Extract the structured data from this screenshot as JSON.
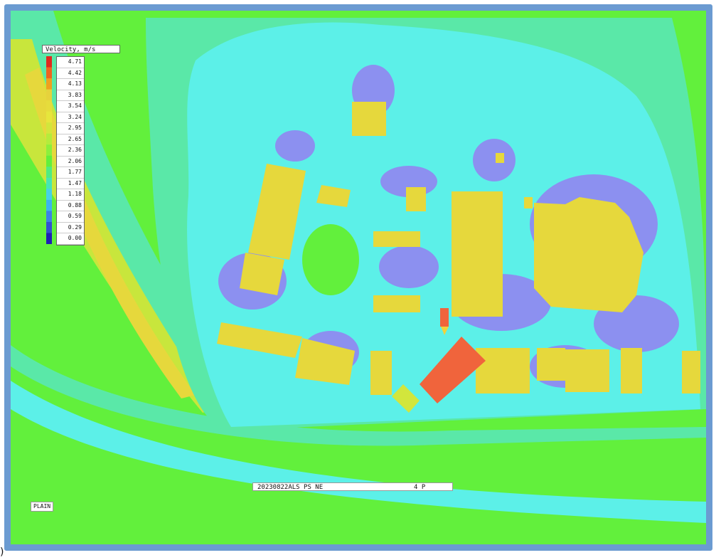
{
  "legend": {
    "title": "Velocity, m/s",
    "values": [
      "4.71",
      "4.42",
      "4.13",
      "3.83",
      "3.54",
      "3.24",
      "2.95",
      "2.65",
      "2.36",
      "2.06",
      "1.77",
      "1.47",
      "1.18",
      "0.88",
      "0.59",
      "0.29",
      "0.00"
    ],
    "colors": [
      "#e0281e",
      "#f0641e",
      "#f0a01e",
      "#e6d23c",
      "#e6dc3c",
      "#e6e63c",
      "#d2e63c",
      "#b4ec3c",
      "#8cf03c",
      "#62f03c",
      "#50ec82",
      "#46e6b4",
      "#46d2e6",
      "#3cb4f0",
      "#3c82e6",
      "#3250d2",
      "#1e1eb4"
    ]
  },
  "caption": {
    "left": "20230822ALS PS NE",
    "right": "4 P"
  },
  "view_label": "PLAIN",
  "corner_mark": ")",
  "colors": {
    "frame": "#6b9bd1",
    "low": "#8c90f0",
    "cyan": "#5cf0e8",
    "light": "#5ae8a8",
    "green": "#62f03c",
    "mid": "#8ef03c",
    "building": "#e6d83c",
    "hot": "#f0643c"
  }
}
